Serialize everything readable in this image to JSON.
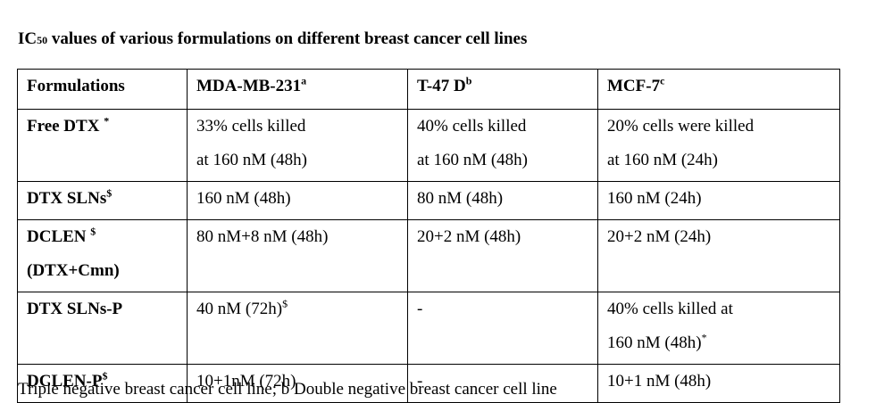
{
  "title": {
    "prefix": "IC",
    "sub": "50",
    "rest": " values of various formulations on different breast cancer cell lines"
  },
  "headers": [
    {
      "text": "Formulations",
      "sup": ""
    },
    {
      "text": "MDA-MB-231",
      "sup": "a"
    },
    {
      "text": "T-47 D",
      "sup": "b"
    },
    {
      "text": "MCF-7",
      "sup": "c"
    }
  ],
  "rows": [
    {
      "name": "Free DTX ",
      "name_sup": "*",
      "name2": "",
      "c1": [
        "33% cells killed",
        "at 160 nM (48h)"
      ],
      "c1_sup": "",
      "c2": [
        "40% cells killed",
        "at 160 nM (48h)"
      ],
      "c3": [
        "20% cells were killed",
        "at 160 nM (24h)"
      ],
      "c3_sup": ""
    },
    {
      "name": "DTX SLNs",
      "name_sup": "$",
      "name2": "",
      "c1": [
        "160 nM (48h)"
      ],
      "c1_sup": "",
      "c2": [
        "80 nM (48h)"
      ],
      "c3": [
        "160 nM (24h)"
      ],
      "c3_sup": ""
    },
    {
      "name": "DCLEN ",
      "name_sup": "$",
      "name2": "(DTX+Cmn)",
      "c1": [
        "80 nM+8 nM (48h)"
      ],
      "c1_sup": "",
      "c2": [
        "20+2 nM (48h)"
      ],
      "c3": [
        "20+2 nM (24h)"
      ],
      "c3_sup": ""
    },
    {
      "name": "DTX SLNs-P",
      "name_sup": "",
      "name2": "",
      "c1": [
        "40 nM (72h)"
      ],
      "c1_sup": "$",
      "c2": [
        "-"
      ],
      "c3": [
        "40% cells killed at",
        "160 nM (48h)"
      ],
      "c3_sup": "*"
    },
    {
      "name": "DCLEN-P",
      "name_sup": "$",
      "name2": "",
      "c1": [
        "10+1nM (72h)"
      ],
      "c1_sup": "",
      "c2": [
        "-"
      ],
      "c3": [
        "10+1 nM (48h)"
      ],
      "c3_sup": ""
    }
  ],
  "footnote_partial": "Triple negative breast cancer cell line; b Double negative breast cancer cell line"
}
